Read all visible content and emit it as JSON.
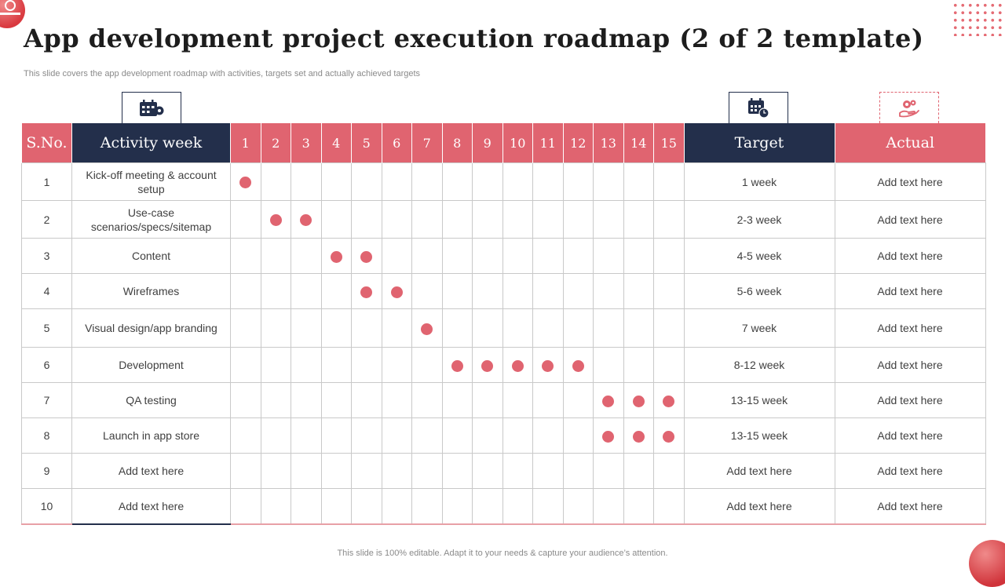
{
  "title": "App development project execution roadmap (2 of 2 template)",
  "subtitle": "This slide covers the app development roadmap with activities, targets set and actually achieved targets",
  "footer": "This slide is 100% editable. Adapt it to your needs & capture your audience’s attention.",
  "colors": {
    "accent": "#e06470",
    "navy": "#232f4b"
  },
  "icons": {
    "activity": "calendar-gear-icon",
    "target": "calendar-clock-icon",
    "actual": "hand-gear-icon"
  },
  "headers": {
    "sno": "S.No.",
    "activity": "Activity week",
    "target": "Target",
    "actual": "Actual"
  },
  "weeks": [
    "1",
    "2",
    "3",
    "4",
    "5",
    "6",
    "7",
    "8",
    "9",
    "10",
    "11",
    "12",
    "13",
    "14",
    "15"
  ],
  "rows": [
    {
      "sno": "1",
      "activity": "Kick-off meeting & account setup",
      "marked_weeks": [
        1
      ],
      "target": "1 week",
      "actual": "Add text here"
    },
    {
      "sno": "2",
      "activity": "Use-case scenarios/specs/sitemap",
      "marked_weeks": [
        2,
        3
      ],
      "target": "2-3 week",
      "actual": "Add text here"
    },
    {
      "sno": "3",
      "activity": "Content",
      "marked_weeks": [
        4,
        5
      ],
      "target": "4-5 week",
      "actual": "Add text here"
    },
    {
      "sno": "4",
      "activity": "Wireframes",
      "marked_weeks": [
        5,
        6
      ],
      "target": "5-6 week",
      "actual": "Add text here"
    },
    {
      "sno": "5",
      "activity": "Visual design/app branding",
      "marked_weeks": [
        7
      ],
      "target": "7 week",
      "actual": "Add text here"
    },
    {
      "sno": "6",
      "activity": "Development",
      "marked_weeks": [
        8,
        9,
        10,
        11,
        12
      ],
      "target": "8-12 week",
      "actual": "Add text here"
    },
    {
      "sno": "7",
      "activity": "QA testing",
      "marked_weeks": [
        13,
        14,
        15
      ],
      "target": "13-15 week",
      "actual": "Add text here"
    },
    {
      "sno": "8",
      "activity": "Launch in app store",
      "marked_weeks": [
        13,
        14,
        15
      ],
      "target": "13-15 week",
      "actual": "Add text here"
    },
    {
      "sno": "9",
      "activity": "Add text here",
      "marked_weeks": [],
      "target": "Add text here",
      "actual": "Add text here"
    },
    {
      "sno": "10",
      "activity": "Add text here",
      "marked_weeks": [],
      "target": "Add text here",
      "actual": "Add text here"
    }
  ]
}
